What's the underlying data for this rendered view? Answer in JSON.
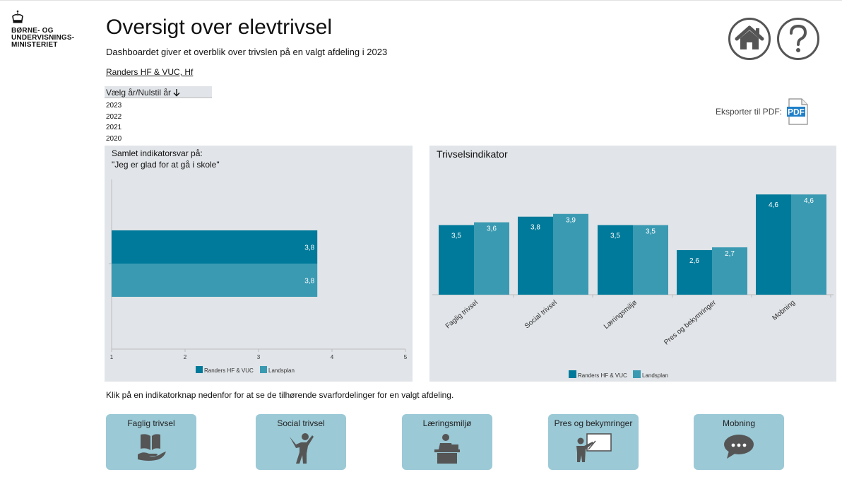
{
  "logo": {
    "lines": [
      "BØRNE- OG",
      "UNDERVISNINGS-",
      "MINISTERIET"
    ]
  },
  "header": {
    "title": "Oversigt over elevtrivsel",
    "subtitle": "Dashboardet giver et overblik over trivslen på en valgt afdeling i 2023",
    "school": "Randers HF & VUC, Hf"
  },
  "year_filter": {
    "label": "Vælg år/Nulstil år",
    "years": [
      "2023",
      "2022",
      "2021",
      "2020"
    ]
  },
  "export": {
    "label": "Eksporter til PDF:",
    "icon": "pdf-icon"
  },
  "icons": {
    "home": "home-icon",
    "help": "help-icon"
  },
  "colors": {
    "primary": "#007a9a",
    "secondary": "#3a9ab2",
    "panel": "#e1e4e8",
    "button": "#9bc9d6",
    "icon": "#555555"
  },
  "left_panel": {
    "title_line1": "Samlet indikatorsvar på:",
    "title_line2": "\"Jeg er glad for at gå i skole\""
  },
  "right_panel": {
    "title": "Trivselsindikator"
  },
  "chart_data": [
    {
      "type": "bar",
      "orientation": "horizontal",
      "title": "Samlet indikatorsvar på: \"Jeg er glad for at gå i skole\"",
      "categories": [
        "Jeg er glad for at gå i skole"
      ],
      "series": [
        {
          "name": "Randers HF & VUC",
          "values": [
            3.8
          ],
          "labels": [
            "3,8"
          ]
        },
        {
          "name": "Landsplan",
          "values": [
            3.8
          ],
          "labels": [
            "3,8"
          ]
        }
      ],
      "xlim": [
        1,
        5
      ],
      "xticks": [
        "1",
        "2",
        "3",
        "4",
        "5"
      ],
      "legend": "bottom",
      "grid": false
    },
    {
      "type": "bar",
      "orientation": "vertical",
      "title": "Trivselsindikator",
      "categories": [
        "Faglig trivsel",
        "Social trivsel",
        "Læringsmiljø",
        "Pres og bekymringer",
        "Mobning"
      ],
      "series": [
        {
          "name": "Randers HF & VUC",
          "values": [
            3.5,
            3.8,
            3.5,
            2.6,
            4.6
          ],
          "labels": [
            "3,5",
            "3,8",
            "3,5",
            "2,6",
            "4,6"
          ]
        },
        {
          "name": "Landsplan",
          "values": [
            3.6,
            3.9,
            3.5,
            2.7,
            4.6
          ],
          "labels": [
            "3,6",
            "3,9",
            "3,5",
            "2,7",
            "4,6"
          ]
        }
      ],
      "ylim": [
        1,
        5
      ],
      "legend": "bottom",
      "grid": false
    }
  ],
  "instruction": "Klik på en indikatorknap nedenfor for at se de tilhørende svarfordelinger for en valgt afdeling.",
  "indicator_buttons": [
    {
      "label": "Faglig trivsel",
      "icon": "book-hand-icon"
    },
    {
      "label": "Social trivsel",
      "icon": "cheering-person-icon"
    },
    {
      "label": "Læringsmiljø",
      "icon": "student-desk-icon"
    },
    {
      "label": "Pres og bekymringer",
      "icon": "teacher-board-icon"
    },
    {
      "label": "Mobning",
      "icon": "speech-bubble-icon"
    }
  ]
}
